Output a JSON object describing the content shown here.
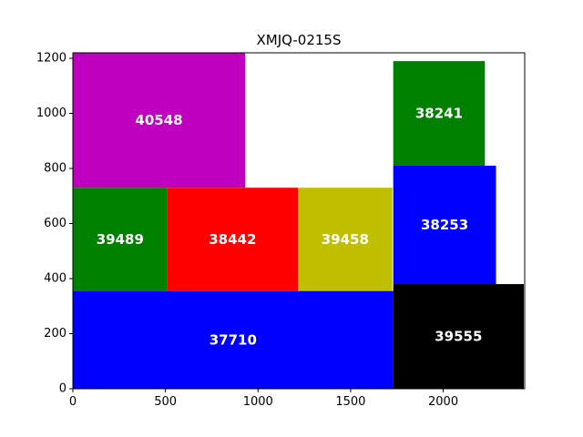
{
  "chart_data": {
    "type": "bar",
    "subtype": "packed-rectangles",
    "title": "XMJQ-0215S",
    "xlabel": "",
    "ylabel": "",
    "xlim": [
      0,
      2440
    ],
    "ylim": [
      0,
      1220
    ],
    "xticks": [
      0,
      500,
      1000,
      1500,
      2000
    ],
    "yticks": [
      0,
      200,
      400,
      600,
      800,
      1000,
      1200
    ],
    "grid": false,
    "legend": "none",
    "rects": [
      {
        "label": "37710",
        "x0": 0,
        "y0": 0,
        "x1": 1730,
        "y1": 355,
        "color": "#0000ff"
      },
      {
        "label": "39555",
        "x0": 1730,
        "y0": 0,
        "x1": 2435,
        "y1": 380,
        "color": "#000000"
      },
      {
        "label": "39489",
        "x0": 0,
        "y0": 355,
        "x1": 510,
        "y1": 730,
        "color": "#008000"
      },
      {
        "label": "38442",
        "x0": 510,
        "y0": 355,
        "x1": 1215,
        "y1": 730,
        "color": "#ff0000"
      },
      {
        "label": "39458",
        "x0": 1215,
        "y0": 355,
        "x1": 1725,
        "y1": 730,
        "color": "#bfbf00"
      },
      {
        "label": "38253",
        "x0": 1730,
        "y0": 380,
        "x1": 2285,
        "y1": 810,
        "color": "#0000ff"
      },
      {
        "label": "40548",
        "x0": 0,
        "y0": 730,
        "x1": 930,
        "y1": 1220,
        "color": "#bf00bf"
      },
      {
        "label": "38241",
        "x0": 1730,
        "y0": 810,
        "x1": 2225,
        "y1": 1190,
        "color": "#008000"
      }
    ]
  }
}
